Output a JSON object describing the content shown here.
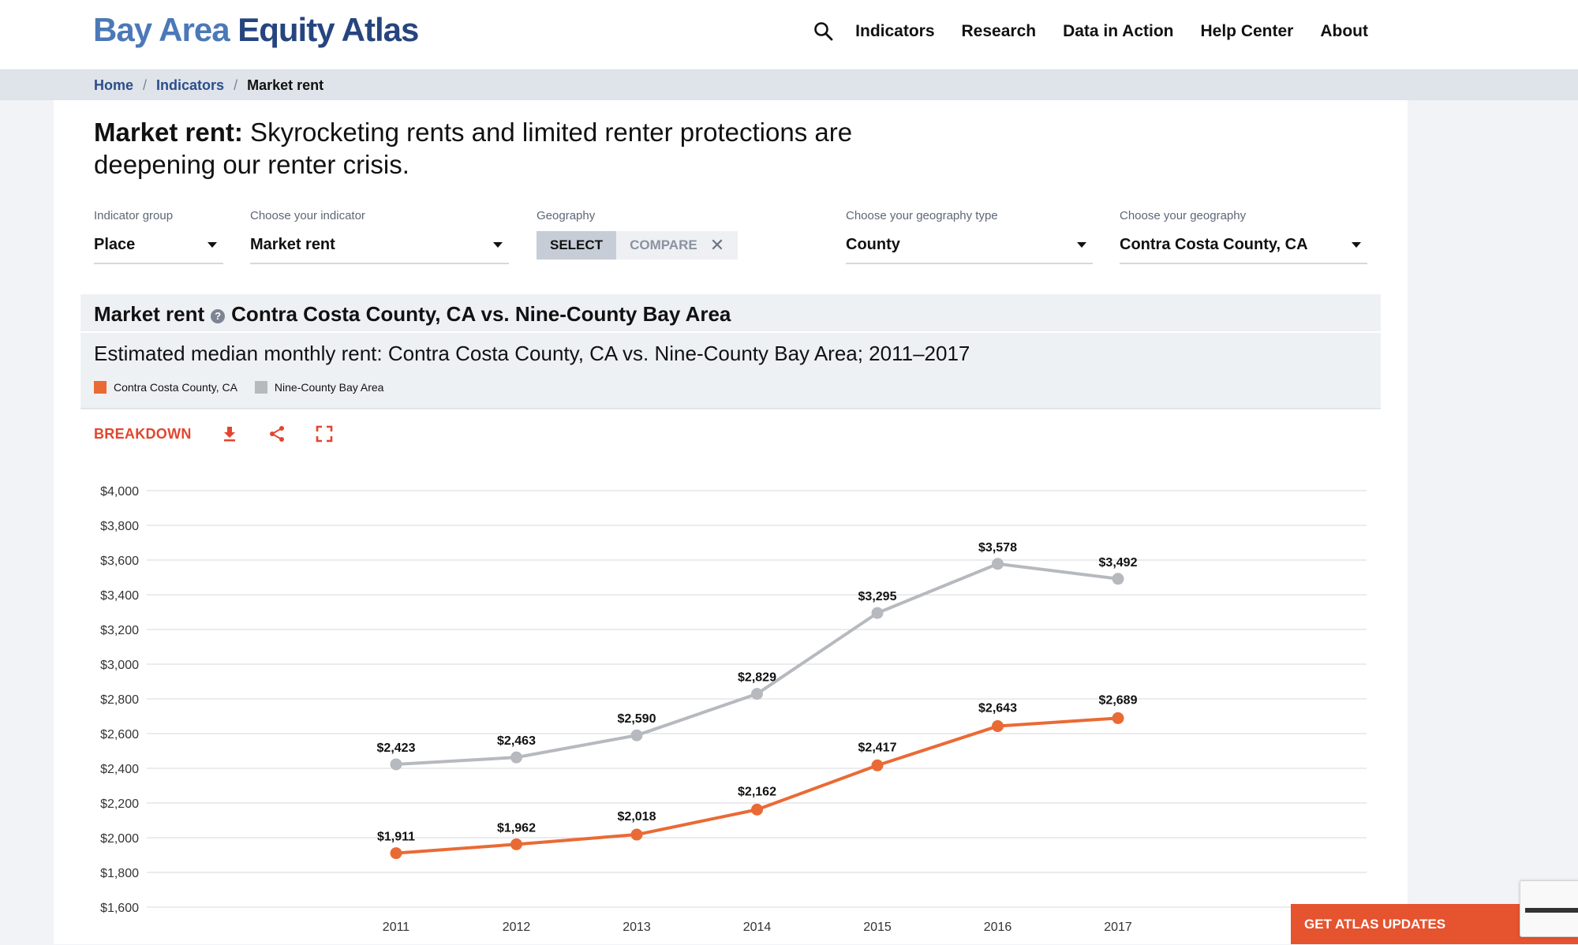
{
  "header": {
    "logo_part1": "Bay Area",
    "logo_part2": "Equity Atlas",
    "search_icon": "search-icon",
    "nav": [
      "Indicators",
      "Research",
      "Data in Action",
      "Help Center",
      "About"
    ]
  },
  "breadcrumb": {
    "home": "Home",
    "indicators": "Indicators",
    "current": "Market rent",
    "separator": "/"
  },
  "headline": {
    "bold": "Market rent:",
    "rest": " Skyrocketing rents and limited renter protections are deepening our renter crisis."
  },
  "controls": {
    "indicator_group": {
      "label": "Indicator group",
      "value": "Place"
    },
    "indicator": {
      "label": "Choose your indicator",
      "value": "Market rent"
    },
    "geography": {
      "label": "Geography",
      "select": "SELECT",
      "compare": "COMPARE"
    },
    "geography_type": {
      "label": "Choose your geography type",
      "value": "County"
    },
    "geo": {
      "label": "Choose your geography",
      "value": "Contra Costa County, CA"
    }
  },
  "chart_header": {
    "title_bold": "Market rent",
    "title_rest": "Contra Costa County, CA vs. Nine-County Bay Area",
    "help_glyph": "?"
  },
  "toolbar": {
    "breakdown": "BREAKDOWN",
    "icons": [
      "download-icon",
      "share-icon",
      "fullscreen-icon"
    ]
  },
  "chart_data": {
    "type": "line",
    "title": "Estimated median monthly rent: Contra Costa County, CA vs. Nine-County Bay Area; 2011–2017",
    "xlabel": "",
    "ylabel": "",
    "x": [
      "2011",
      "2012",
      "2013",
      "2014",
      "2015",
      "2016",
      "2017"
    ],
    "ylim": [
      1600,
      4000
    ],
    "yticks": [
      1600,
      1800,
      2000,
      2200,
      2400,
      2600,
      2800,
      3000,
      3200,
      3400,
      3600,
      3800,
      4000
    ],
    "grid": true,
    "legend_position": "top-left",
    "series": [
      {
        "name": "Contra Costa County, CA",
        "color": "#ea6a35",
        "values": [
          1911,
          1962,
          2018,
          2162,
          2417,
          2643,
          2689
        ],
        "labels": [
          "$1,911",
          "$1,962",
          "$2,018",
          "$2,162",
          "$2,417",
          "$2,643",
          "$2,689"
        ]
      },
      {
        "name": "Nine-County Bay Area",
        "color": "#b6b9be",
        "values": [
          2423,
          2463,
          2590,
          2829,
          3295,
          3578,
          3492
        ],
        "labels": [
          "$2,423",
          "$2,463",
          "$2,590",
          "$2,829",
          "$3,295",
          "$3,578",
          "$3,492"
        ]
      }
    ]
  },
  "footer": {
    "updates_button": "GET ATLAS UPDATES"
  }
}
